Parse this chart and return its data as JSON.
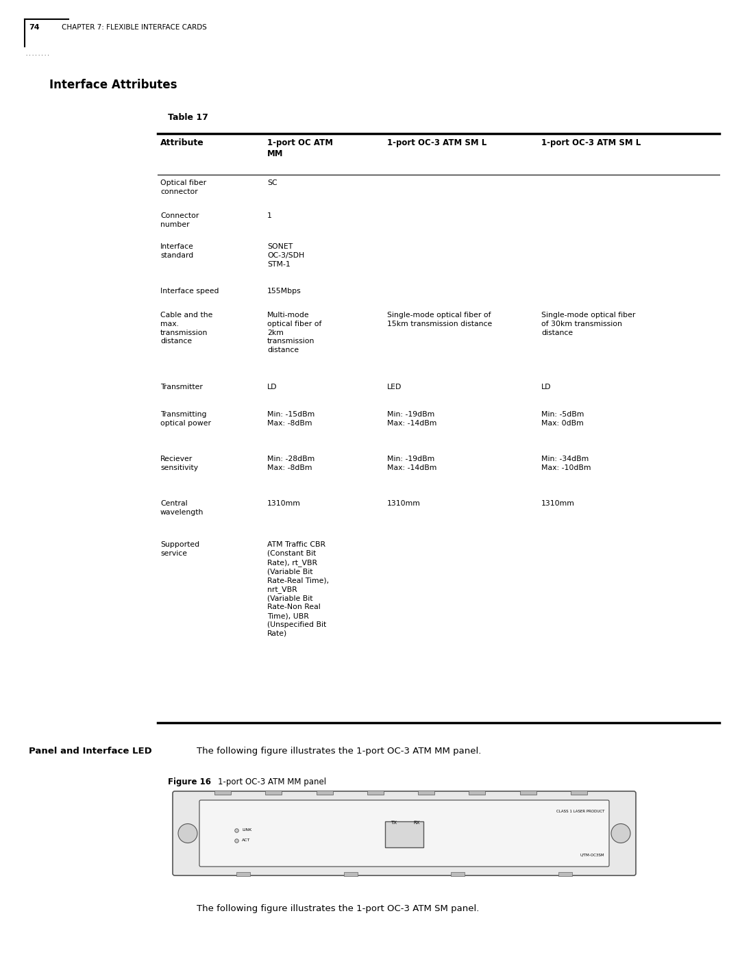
{
  "page_number": "74",
  "chapter_header": "CHAPTER 7: FLEXIBLE INTERFACE CARDS",
  "section_title": "Interface Attributes",
  "table_title": "Table 17",
  "rows": [
    {
      "attr": "Optical fiber\nconnector",
      "col1": "SC",
      "col2": "",
      "col3": ""
    },
    {
      "attr": "Connector\nnumber",
      "col1": "1",
      "col2": "",
      "col3": ""
    },
    {
      "attr": "Interface\nstandard",
      "col1": "SONET\nOC-3/SDH\nSTM-1",
      "col2": "",
      "col3": ""
    },
    {
      "attr": "Interface speed",
      "col1": "155Mbps",
      "col2": "",
      "col3": ""
    },
    {
      "attr": "Cable and the\nmax.\ntransmission\ndistance",
      "col1": "Multi-mode\noptical fiber of\n2km\ntransmission\ndistance",
      "col2": "Single-mode optical fiber of\n15km transmission distance",
      "col3": "Single-mode optical fiber\nof 30km transmission\ndistance"
    },
    {
      "attr": "Transmitter",
      "col1": "LD",
      "col2": "LED",
      "col3": "LD"
    },
    {
      "attr": "Transmitting\noptical power",
      "col1": "Min: -15dBm\nMax: -8dBm",
      "col2": "Min: -19dBm\nMax: -14dBm",
      "col3": "Min: -5dBm\nMax: 0dBm"
    },
    {
      "attr": "Reciever\nsensitivity",
      "col1": "Min: -28dBm\nMax: -8dBm",
      "col2": "Min: -19dBm\nMax: -14dBm",
      "col3": "Min: -34dBm\nMax: -10dBm"
    },
    {
      "attr": "Central\nwavelength",
      "col1": "1310mm",
      "col2": "1310mm",
      "col3": "1310mm"
    },
    {
      "attr": "Supported\nservice",
      "col1": "ATM Traffic CBR\n(Constant Bit\nRate), rt_VBR\n(Variable Bit\nRate-Real Time),\nnrt_VBR\n(Variable Bit\nRate-Non Real\nTime), UBR\n(Unspecified Bit\nRate)",
      "col2": "",
      "col3": ""
    }
  ],
  "panel_label": "Panel and Interface LED",
  "panel_text": "The following figure illustrates the 1-port OC-3 ATM MM panel.",
  "figure_label": "Figure 16",
  "figure_caption": "1-port OC-3 ATM MM panel",
  "bottom_text": "The following figure illustrates the 1-port OC-3 ATM SM panel.",
  "bg_color": "#ffffff",
  "text_color": "#000000"
}
